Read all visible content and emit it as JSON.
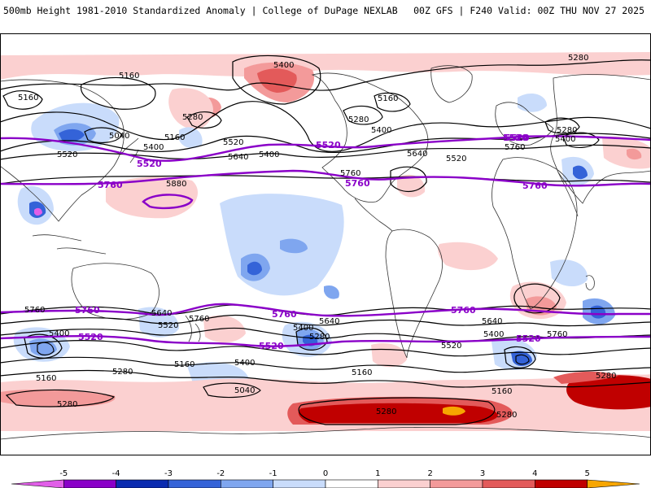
{
  "header": {
    "left": "500mb Height 1981-2010 Standardized Anomaly | College of DuPage NEXLAB",
    "right": "00Z GFS | F240 Valid: 00Z THU NOV 27 2025"
  },
  "colorbar": {
    "ticks": [
      "-5",
      "-4",
      "-3",
      "-2",
      "-1",
      "0",
      "1",
      "2",
      "3",
      "4",
      "5"
    ],
    "colors": [
      "#e15ee8",
      "#8a00c8",
      "#0a2bb0",
      "#3463d8",
      "#7fa6ef",
      "#c9dcfb",
      "#ffffff",
      "#fbd0d0",
      "#f39a9a",
      "#e35a5a",
      "#c00000",
      "#f7a600"
    ]
  },
  "contour_labels": {
    "black": [
      "5160",
      "5160",
      "5040",
      "5400",
      "5520",
      "5280",
      "5400",
      "5160",
      "5520",
      "5640",
      "5400",
      "5280",
      "5160",
      "5400",
      "5640",
      "5520",
      "5280",
      "5400",
      "5760",
      "5760",
      "5880",
      "5280",
      "5640",
      "5520",
      "5760",
      "5400",
      "5160",
      "5280",
      "5400",
      "5160",
      "5040",
      "5760",
      "5640",
      "5400",
      "5280",
      "5520",
      "5160",
      "5280",
      "5280",
      "5280",
      "5160",
      "5760",
      "5640",
      "5400",
      "5280"
    ],
    "purple": [
      "5520",
      "5520",
      "5760",
      "5520",
      "5760",
      "5520",
      "5760",
      "5760",
      "5760",
      "5760",
      "5520",
      "5520",
      "5520"
    ]
  },
  "map_colors": {
    "pos1": "#fbd0d0",
    "pos2": "#f39a9a",
    "pos3": "#e35a5a",
    "pos4": "#c00000",
    "pos5": "#f7a600",
    "neg1": "#c9dcfb",
    "neg2": "#7fa6ef",
    "neg3": "#3463d8",
    "neg5": "#e15ee8",
    "contour": "#000000",
    "highlight": "#8a00c8",
    "coast": "#333333"
  }
}
